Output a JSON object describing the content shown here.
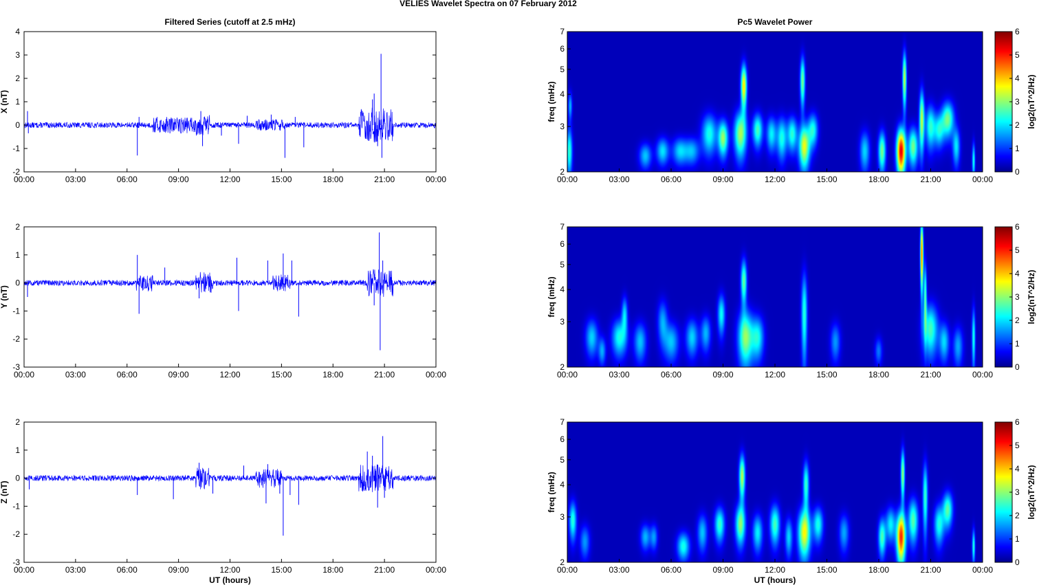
{
  "figure": {
    "title": "VELIES Wavelet Spectra on 07 February  2012"
  },
  "chart_data": [
    {
      "type": "line",
      "panel_title": "Filtered Series (cutoff at 2.5 mHz)",
      "ylabel": "X (nT)",
      "xlabel": "",
      "ylim": [
        -2,
        4
      ],
      "yticks": [
        "-2",
        "-1",
        "0",
        "1",
        "2",
        "3",
        "4"
      ],
      "xticks": [
        "00:00",
        "03:00",
        "06:00",
        "09:00",
        "12:00",
        "15:00",
        "18:00",
        "21:00",
        "00:00"
      ],
      "xlim_hours": [
        0,
        24
      ],
      "color": "#0000ff",
      "noise_amplitude": 0.12,
      "bursts": [
        [
          7.5,
          10.5,
          0.35
        ],
        [
          10.0,
          10.8,
          0.45
        ],
        [
          13.5,
          15.2,
          0.25
        ],
        [
          19.5,
          21.5,
          0.75
        ]
      ],
      "spikes": [
        [
          0.2,
          0.6
        ],
        [
          0.25,
          -0.35
        ],
        [
          6.6,
          -1.3
        ],
        [
          6.7,
          0.35
        ],
        [
          8.5,
          -0.35
        ],
        [
          10.3,
          0.6
        ],
        [
          10.4,
          -0.9
        ],
        [
          11.5,
          -0.45
        ],
        [
          12.5,
          -0.8
        ],
        [
          13.0,
          0.4
        ],
        [
          14.4,
          0.45
        ],
        [
          15.2,
          -1.4
        ],
        [
          15.8,
          0.35
        ],
        [
          16.3,
          -0.95
        ],
        [
          20.3,
          1.1
        ],
        [
          20.4,
          1.35
        ],
        [
          20.6,
          -0.9
        ],
        [
          20.8,
          3.05
        ],
        [
          20.85,
          -1.4
        ],
        [
          24.0,
          0.6
        ]
      ]
    },
    {
      "type": "line",
      "panel_title": "",
      "ylabel": "Y (nT)",
      "xlabel": "",
      "ylim": [
        -3,
        2
      ],
      "yticks": [
        "-3",
        "-2",
        "-1",
        "0",
        "1",
        "2"
      ],
      "xticks": [
        "00:00",
        "03:00",
        "06:00",
        "09:00",
        "12:00",
        "15:00",
        "18:00",
        "21:00",
        "00:00"
      ],
      "xlim_hours": [
        0,
        24
      ],
      "color": "#0000ff",
      "noise_amplitude": 0.1,
      "bursts": [
        [
          6.5,
          7.5,
          0.3
        ],
        [
          10.0,
          11.0,
          0.4
        ],
        [
          14.5,
          15.5,
          0.3
        ],
        [
          20.0,
          21.5,
          0.5
        ]
      ],
      "spikes": [
        [
          0.2,
          -0.5
        ],
        [
          6.6,
          1.0
        ],
        [
          6.7,
          -1.1
        ],
        [
          8.2,
          0.55
        ],
        [
          10.2,
          -0.55
        ],
        [
          12.4,
          0.9
        ],
        [
          12.5,
          -1.0
        ],
        [
          14.2,
          0.8
        ],
        [
          15.1,
          1.05
        ],
        [
          15.6,
          0.8
        ],
        [
          16.0,
          -1.2
        ],
        [
          20.4,
          -0.8
        ],
        [
          20.7,
          1.8
        ],
        [
          20.75,
          -2.4
        ],
        [
          20.9,
          0.8
        ],
        [
          24.0,
          0.6
        ]
      ]
    },
    {
      "type": "line",
      "panel_title": "",
      "ylabel": "Z (nT)",
      "xlabel": "UT (hours)",
      "ylim": [
        -3,
        2
      ],
      "yticks": [
        "-3",
        "-2",
        "-1",
        "0",
        "1",
        "2"
      ],
      "xticks": [
        "00:00",
        "03:00",
        "06:00",
        "09:00",
        "12:00",
        "15:00",
        "18:00",
        "21:00",
        "00:00"
      ],
      "xlim_hours": [
        0,
        24
      ],
      "color": "#0000ff",
      "noise_amplitude": 0.1,
      "bursts": [
        [
          10.0,
          10.8,
          0.4
        ],
        [
          13.5,
          15.0,
          0.35
        ],
        [
          19.5,
          21.5,
          0.5
        ]
      ],
      "spikes": [
        [
          0.3,
          -0.4
        ],
        [
          6.6,
          -0.6
        ],
        [
          8.7,
          -0.75
        ],
        [
          10.2,
          0.55
        ],
        [
          11.0,
          -0.55
        ],
        [
          12.8,
          0.45
        ],
        [
          14.1,
          -0.9
        ],
        [
          14.2,
          0.5
        ],
        [
          14.9,
          -0.55
        ],
        [
          15.1,
          -2.05
        ],
        [
          15.5,
          -0.6
        ],
        [
          16.0,
          -0.95
        ],
        [
          20.0,
          0.95
        ],
        [
          20.3,
          0.8
        ],
        [
          20.6,
          -1.05
        ],
        [
          20.9,
          1.5
        ],
        [
          21.0,
          -0.7
        ],
        [
          24.0,
          0.65
        ]
      ]
    },
    {
      "type": "heatmap",
      "panel_title": "Pc5 Wavelet Power",
      "ylabel": "freq (mHz)",
      "xlabel": "",
      "yticks": [
        "2",
        "3",
        "4",
        "5",
        "6",
        "7"
      ],
      "ylim_mhz": [
        2,
        7
      ],
      "xticks": [
        "00:00",
        "03:00",
        "06:00",
        "09:00",
        "12:00",
        "15:00",
        "18:00",
        "21:00",
        "00:00"
      ],
      "xlim_hours": [
        0,
        24
      ],
      "colorbar": {
        "label": "log2(nT^2/Hz)",
        "ticks": [
          "0",
          "1",
          "2",
          "3",
          "4",
          "5",
          "6"
        ],
        "range": [
          0,
          6
        ]
      },
      "blobs": [
        [
          0.1,
          2.4,
          0.12,
          0.35,
          2.4
        ],
        [
          0.15,
          3.6,
          0.08,
          0.3,
          1.6
        ],
        [
          4.5,
          2.3,
          0.25,
          0.18,
          1.7
        ],
        [
          5.5,
          2.4,
          0.25,
          0.2,
          1.9
        ],
        [
          6.5,
          2.4,
          0.3,
          0.2,
          1.8
        ],
        [
          7.2,
          2.4,
          0.3,
          0.2,
          1.6
        ],
        [
          8.2,
          2.8,
          0.3,
          0.35,
          2.2
        ],
        [
          9.0,
          2.7,
          0.2,
          0.3,
          3.0
        ],
        [
          10.0,
          2.8,
          0.25,
          0.4,
          3.1
        ],
        [
          10.2,
          4.3,
          0.12,
          0.6,
          3.8
        ],
        [
          11.0,
          2.9,
          0.2,
          0.3,
          2.5
        ],
        [
          11.8,
          2.8,
          0.2,
          0.3,
          2.0
        ],
        [
          12.4,
          2.7,
          0.2,
          0.35,
          2.2
        ],
        [
          13.0,
          2.8,
          0.2,
          0.3,
          2.3
        ],
        [
          13.7,
          2.5,
          0.22,
          0.35,
          3.5
        ],
        [
          13.6,
          4.5,
          0.1,
          0.7,
          2.8
        ],
        [
          14.2,
          2.9,
          0.2,
          0.3,
          2.2
        ],
        [
          17.2,
          2.4,
          0.2,
          0.3,
          1.8
        ],
        [
          18.2,
          2.4,
          0.15,
          0.3,
          2.8
        ],
        [
          19.3,
          2.4,
          0.18,
          0.35,
          5.4
        ],
        [
          19.5,
          4.6,
          0.08,
          0.8,
          3.3
        ],
        [
          20.0,
          2.5,
          0.2,
          0.3,
          2.8
        ],
        [
          20.5,
          3.2,
          0.1,
          0.6,
          3.2
        ],
        [
          21.0,
          3.0,
          0.2,
          0.4,
          2.3
        ],
        [
          21.5,
          2.9,
          0.2,
          0.3,
          2.0
        ],
        [
          22.0,
          3.2,
          0.25,
          0.35,
          2.8
        ],
        [
          22.5,
          2.5,
          0.15,
          0.3,
          1.9
        ],
        [
          23.5,
          2.2,
          0.06,
          0.25,
          2.2
        ]
      ]
    },
    {
      "type": "heatmap",
      "panel_title": "",
      "ylabel": "freq (mHz)",
      "xlabel": "",
      "yticks": [
        "2",
        "3",
        "4",
        "5",
        "6",
        "7"
      ],
      "ylim_mhz": [
        2,
        7
      ],
      "xticks": [
        "00:00",
        "03:00",
        "06:00",
        "09:00",
        "12:00",
        "15:00",
        "18:00",
        "21:00",
        "00:00"
      ],
      "xlim_hours": [
        0,
        24
      ],
      "colorbar": {
        "label": "log2(nT^2/Hz)",
        "ticks": [
          "0",
          "1",
          "2",
          "3",
          "4",
          "5",
          "6"
        ],
        "range": [
          0,
          6
        ]
      },
      "blobs": [
        [
          1.4,
          2.6,
          0.25,
          0.3,
          1.8
        ],
        [
          2.0,
          2.3,
          0.15,
          0.2,
          1.5
        ],
        [
          3.0,
          2.6,
          0.3,
          0.3,
          2.2
        ],
        [
          3.3,
          3.2,
          0.12,
          0.35,
          1.8
        ],
        [
          4.2,
          2.5,
          0.25,
          0.3,
          1.7
        ],
        [
          5.5,
          3.0,
          0.2,
          0.4,
          1.5
        ],
        [
          6.0,
          2.5,
          0.3,
          0.3,
          1.7
        ],
        [
          7.2,
          2.6,
          0.25,
          0.3,
          1.8
        ],
        [
          8.0,
          2.7,
          0.2,
          0.3,
          1.6
        ],
        [
          8.9,
          3.2,
          0.15,
          0.4,
          2.1
        ],
        [
          10.3,
          2.6,
          0.3,
          0.45,
          3.0
        ],
        [
          10.2,
          4.3,
          0.12,
          0.6,
          2.7
        ],
        [
          11.0,
          2.6,
          0.25,
          0.35,
          2.1
        ],
        [
          13.7,
          3.2,
          0.12,
          0.9,
          2.3
        ],
        [
          15.5,
          2.5,
          0.2,
          0.3,
          1.4
        ],
        [
          18.0,
          2.3,
          0.15,
          0.2,
          1.2
        ],
        [
          20.5,
          5.5,
          0.06,
          1.2,
          4.6
        ],
        [
          20.7,
          3.8,
          0.06,
          0.8,
          2.5
        ],
        [
          21.0,
          2.8,
          0.3,
          0.45,
          2.5
        ],
        [
          21.8,
          2.5,
          0.2,
          0.3,
          1.8
        ],
        [
          22.6,
          2.4,
          0.2,
          0.3,
          1.5
        ],
        [
          23.5,
          2.6,
          0.07,
          0.5,
          2.2
        ]
      ]
    },
    {
      "type": "heatmap",
      "panel_title": "",
      "ylabel": "freq (mHz)",
      "xlabel": "UT (hours)",
      "yticks": [
        "2",
        "3",
        "4",
        "5",
        "6",
        "7"
      ],
      "ylim_mhz": [
        2,
        7
      ],
      "xticks": [
        "00:00",
        "03:00",
        "06:00",
        "09:00",
        "12:00",
        "15:00",
        "18:00",
        "21:00",
        "00:00"
      ],
      "xlim_hours": [
        0,
        24
      ],
      "colorbar": {
        "label": "log2(nT^2/Hz)",
        "ticks": [
          "0",
          "1",
          "2",
          "3",
          "4",
          "5",
          "6"
        ],
        "range": [
          0,
          6
        ]
      },
      "blobs": [
        [
          0.3,
          2.9,
          0.15,
          0.35,
          2.3
        ],
        [
          1.0,
          2.4,
          0.2,
          0.25,
          1.4
        ],
        [
          4.5,
          2.5,
          0.2,
          0.2,
          1.6
        ],
        [
          5.0,
          2.5,
          0.15,
          0.2,
          1.4
        ],
        [
          6.7,
          2.3,
          0.25,
          0.2,
          2.2
        ],
        [
          7.8,
          2.6,
          0.2,
          0.3,
          1.7
        ],
        [
          8.8,
          2.8,
          0.2,
          0.3,
          2.4
        ],
        [
          10.0,
          2.8,
          0.2,
          0.35,
          2.9
        ],
        [
          10.1,
          4.3,
          0.12,
          0.6,
          3.2
        ],
        [
          11.0,
          2.6,
          0.2,
          0.3,
          2.0
        ],
        [
          12.0,
          2.8,
          0.2,
          0.35,
          2.5
        ],
        [
          12.8,
          2.5,
          0.15,
          0.3,
          1.8
        ],
        [
          13.7,
          2.6,
          0.25,
          0.4,
          3.6
        ],
        [
          13.8,
          4.0,
          0.12,
          0.6,
          2.4
        ],
        [
          14.5,
          2.8,
          0.2,
          0.3,
          2.2
        ],
        [
          16.0,
          2.6,
          0.2,
          0.3,
          1.5
        ],
        [
          18.2,
          2.5,
          0.15,
          0.3,
          2.5
        ],
        [
          18.7,
          2.8,
          0.2,
          0.3,
          2.0
        ],
        [
          19.3,
          2.5,
          0.18,
          0.4,
          5.0
        ],
        [
          19.4,
          4.4,
          0.08,
          0.7,
          3.0
        ],
        [
          20.0,
          2.9,
          0.2,
          0.4,
          2.6
        ],
        [
          20.7,
          3.6,
          0.1,
          0.8,
          2.4
        ],
        [
          21.5,
          2.8,
          0.2,
          0.35,
          2.2
        ],
        [
          22.0,
          3.2,
          0.2,
          0.35,
          2.6
        ],
        [
          23.5,
          2.3,
          0.06,
          0.25,
          2.3
        ]
      ]
    }
  ]
}
